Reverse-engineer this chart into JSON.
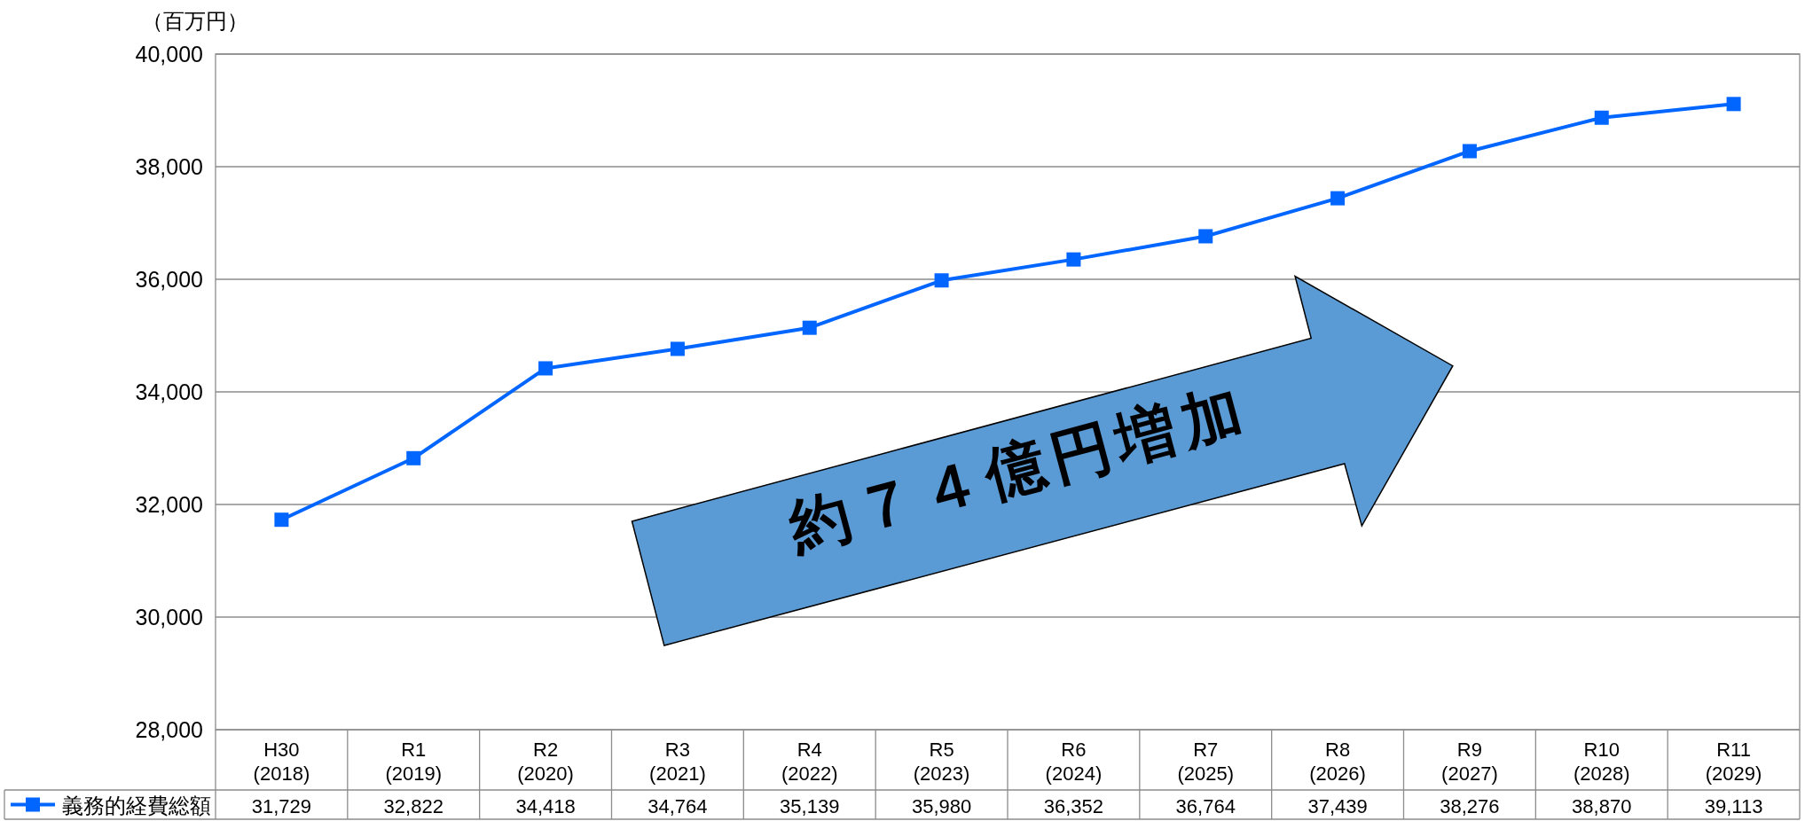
{
  "chart_data": {
    "type": "line",
    "ylabel": "（百万円）",
    "categories": [
      "H30\n(2018)",
      "R1\n(2019)",
      "R2\n(2020)",
      "R3\n(2021)",
      "R4\n(2022)",
      "R5\n(2023)",
      "R6\n(2024)",
      "R7\n(2025)",
      "R8\n(2026)",
      "R9\n(2027)",
      "R10\n(2028)",
      "R11\n(2029)"
    ],
    "series": [
      {
        "name": "義務的経費総額",
        "color": "#0066ff",
        "values": [
          31729,
          32822,
          34418,
          34764,
          35139,
          35980,
          36352,
          36764,
          37439,
          38276,
          38870,
          39113
        ],
        "value_labels": [
          "31,729",
          "32,822",
          "34,418",
          "34,764",
          "35,139",
          "35,980",
          "36,352",
          "36,764",
          "37,439",
          "38,276",
          "38,870",
          "39,113"
        ]
      }
    ],
    "ylim": [
      28000,
      40000
    ],
    "yticks": [
      {
        "value": 28000,
        "label": "28,000"
      },
      {
        "value": 30000,
        "label": "30,000"
      },
      {
        "value": 32000,
        "label": "32,000"
      },
      {
        "value": 34000,
        "label": "34,000"
      },
      {
        "value": 36000,
        "label": "36,000"
      },
      {
        "value": 38000,
        "label": "38,000"
      },
      {
        "value": 40000,
        "label": "40,000"
      }
    ],
    "grid": "y",
    "legend": "bottom",
    "marker": "square",
    "line_style": "solid",
    "annotations": [
      "約７４億円増加"
    ]
  }
}
